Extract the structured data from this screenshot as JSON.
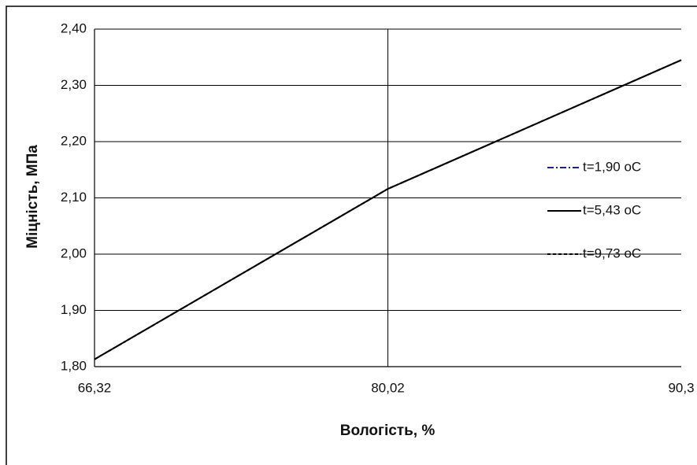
{
  "chart_data": {
    "type": "line",
    "xlabel": "Вологість, %",
    "ylabel": "Міцність, МПа",
    "categories": [
      "66,32",
      "80,02",
      "90,3"
    ],
    "series": [
      {
        "name": "t=1,90 oC",
        "color": "#1a237e",
        "dash": "dashdot",
        "values": [
          1.813,
          2.116,
          2.345
        ]
      },
      {
        "name": "t=5,43 oC",
        "color": "#000000",
        "dash": "solid",
        "values": [
          1.813,
          2.116,
          2.345
        ]
      },
      {
        "name": "t=9,73 oC",
        "color": "#000000",
        "dash": "dashed",
        "values": [
          1.813,
          2.116,
          2.345
        ]
      }
    ],
    "ylim": [
      1.8,
      2.4
    ],
    "yticks": [
      {
        "value": 1.8,
        "label": "1,80"
      },
      {
        "value": 1.9,
        "label": "1,90"
      },
      {
        "value": 2.0,
        "label": "2,00"
      },
      {
        "value": 2.1,
        "label": "2,10"
      },
      {
        "value": 2.2,
        "label": "2,20"
      },
      {
        "value": 2.3,
        "label": "2,30"
      },
      {
        "value": 2.4,
        "label": "2,40"
      }
    ],
    "grid": true,
    "legend": "right"
  }
}
